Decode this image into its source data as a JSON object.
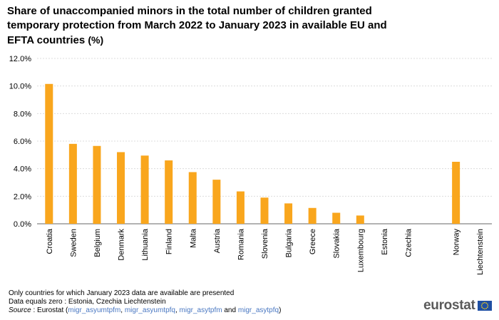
{
  "title": "Share of unaccompanied minors in the total number of children granted temporary protection from March 2022 to January 2023 in available EU and EFTA countries",
  "title_unit": "(%)",
  "notes": [
    "Only countries for which January 2023 data are available are presented",
    "Data equals zero : Estonia, Czechia Liechtenstein"
  ],
  "source": {
    "label": "Source",
    "prefix": " : Eurostat (",
    "links": [
      "migr_asyumtpfm",
      "migr_asyumtpfq",
      "migr_asytpfm",
      "migr_asytpfq"
    ],
    "sep1": ", ",
    "sep2": ",  ",
    "and": " and ",
    "suffix": ")"
  },
  "logo": "eurostat",
  "chart_data": {
    "type": "bar",
    "categories": [
      "Croatia",
      "Sweden",
      "Belgium",
      "Denmark",
      "Lithuania",
      "Finland",
      "Malta",
      "Austria",
      "Romania",
      "Slovenia",
      "Bulgaria",
      "Greece",
      "Slovakia",
      "Luxembourg",
      "Estonia",
      "Czechia",
      "",
      "Norway",
      "Liechtenstein"
    ],
    "values": [
      10.15,
      5.8,
      5.65,
      5.2,
      4.95,
      4.6,
      3.75,
      3.2,
      2.35,
      1.9,
      1.48,
      1.15,
      0.8,
      0.6,
      0,
      0,
      null,
      4.5,
      0
    ],
    "yticks": [
      "0.0%",
      "2.0%",
      "4.0%",
      "6.0%",
      "8.0%",
      "10.0%",
      "12.0%"
    ],
    "ylim": [
      0,
      12
    ],
    "grid": true,
    "bar_color": "#f9a61d",
    "grid_color": "#dcdcdc"
  }
}
